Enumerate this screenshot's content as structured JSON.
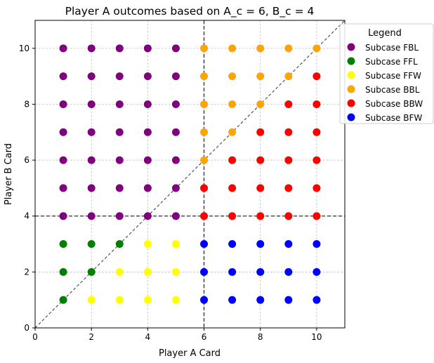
{
  "chart_data": {
    "type": "scatter",
    "title": "Player A outcomes based on A_c = 6, B_c = 4",
    "xlabel": "Player A Card",
    "ylabel": "Player B Card",
    "xlim": [
      0,
      11
    ],
    "ylim": [
      0,
      11
    ],
    "xticks": [
      0,
      2,
      4,
      6,
      8,
      10
    ],
    "yticks": [
      0,
      2,
      4,
      6,
      8,
      10
    ],
    "grid": true,
    "reference_lines": {
      "vertical_x": 6,
      "horizontal_y": 4,
      "diagonal": "y = x"
    },
    "legend": {
      "title": "Legend",
      "placement": "outside-top-right"
    },
    "series": [
      {
        "name": "Subcase FBL",
        "color": "#800080",
        "points": [
          [
            1,
            4
          ],
          [
            1,
            5
          ],
          [
            1,
            6
          ],
          [
            1,
            7
          ],
          [
            1,
            8
          ],
          [
            1,
            9
          ],
          [
            1,
            10
          ],
          [
            2,
            4
          ],
          [
            2,
            5
          ],
          [
            2,
            6
          ],
          [
            2,
            7
          ],
          [
            2,
            8
          ],
          [
            2,
            9
          ],
          [
            2,
            10
          ],
          [
            3,
            4
          ],
          [
            3,
            5
          ],
          [
            3,
            6
          ],
          [
            3,
            7
          ],
          [
            3,
            8
          ],
          [
            3,
            9
          ],
          [
            3,
            10
          ],
          [
            4,
            4
          ],
          [
            4,
            5
          ],
          [
            4,
            6
          ],
          [
            4,
            7
          ],
          [
            4,
            8
          ],
          [
            4,
            9
          ],
          [
            4,
            10
          ],
          [
            5,
            4
          ],
          [
            5,
            5
          ],
          [
            5,
            6
          ],
          [
            5,
            7
          ],
          [
            5,
            8
          ],
          [
            5,
            9
          ],
          [
            5,
            10
          ]
        ]
      },
      {
        "name": "Subcase FFL",
        "color": "#008000",
        "points": [
          [
            1,
            1
          ],
          [
            1,
            2
          ],
          [
            1,
            3
          ],
          [
            2,
            2
          ],
          [
            2,
            3
          ],
          [
            3,
            3
          ]
        ]
      },
      {
        "name": "Subcase FFW",
        "color": "#ffff00",
        "points": [
          [
            2,
            1
          ],
          [
            3,
            1
          ],
          [
            3,
            2
          ],
          [
            4,
            1
          ],
          [
            4,
            2
          ],
          [
            4,
            3
          ],
          [
            5,
            1
          ],
          [
            5,
            2
          ],
          [
            5,
            3
          ]
        ]
      },
      {
        "name": "Subcase BBL",
        "color": "#ffa500",
        "points": [
          [
            6,
            6
          ],
          [
            6,
            7
          ],
          [
            6,
            8
          ],
          [
            6,
            9
          ],
          [
            6,
            10
          ],
          [
            7,
            7
          ],
          [
            7,
            8
          ],
          [
            7,
            9
          ],
          [
            7,
            10
          ],
          [
            8,
            8
          ],
          [
            8,
            9
          ],
          [
            8,
            10
          ],
          [
            9,
            9
          ],
          [
            9,
            10
          ],
          [
            10,
            10
          ]
        ]
      },
      {
        "name": "Subcase BBW",
        "color": "#ff0000",
        "points": [
          [
            6,
            4
          ],
          [
            6,
            5
          ],
          [
            7,
            4
          ],
          [
            7,
            5
          ],
          [
            7,
            6
          ],
          [
            8,
            4
          ],
          [
            8,
            5
          ],
          [
            8,
            6
          ],
          [
            8,
            7
          ],
          [
            9,
            4
          ],
          [
            9,
            5
          ],
          [
            9,
            6
          ],
          [
            9,
            7
          ],
          [
            9,
            8
          ],
          [
            10,
            4
          ],
          [
            10,
            5
          ],
          [
            10,
            6
          ],
          [
            10,
            7
          ],
          [
            10,
            8
          ],
          [
            10,
            9
          ]
        ]
      },
      {
        "name": "Subcase BFW",
        "color": "#0000ff",
        "points": [
          [
            6,
            1
          ],
          [
            6,
            2
          ],
          [
            6,
            3
          ],
          [
            7,
            1
          ],
          [
            7,
            2
          ],
          [
            7,
            3
          ],
          [
            8,
            1
          ],
          [
            8,
            2
          ],
          [
            8,
            3
          ],
          [
            9,
            1
          ],
          [
            9,
            2
          ],
          [
            9,
            3
          ],
          [
            10,
            1
          ],
          [
            10,
            2
          ],
          [
            10,
            3
          ]
        ]
      }
    ]
  }
}
